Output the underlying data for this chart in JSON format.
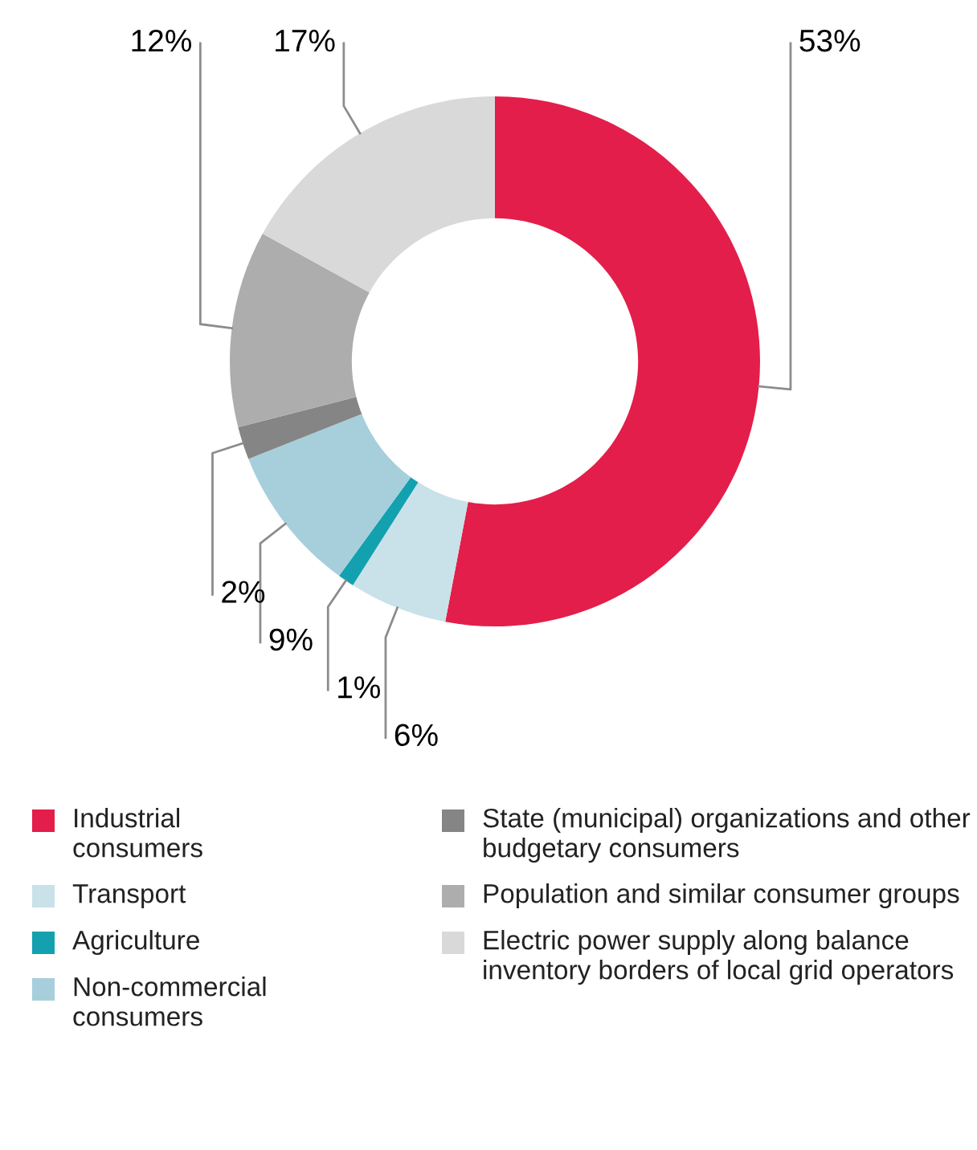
{
  "chart_data": {
    "type": "donut",
    "categories": [
      "Industrial consumers",
      "Transport",
      "Agriculture",
      "Non-commercial consumers",
      "State (municipal) organizations and other budgetary consumers",
      "Population and similar consumer groups",
      "Electric power supply along balance inventory borders of local grid operators"
    ],
    "values": [
      53,
      6,
      1,
      9,
      2,
      12,
      17
    ],
    "colors": [
      "#e31e4a",
      "#c9e1e9",
      "#13a1b0",
      "#a6cfdb",
      "#858585",
      "#adadad",
      "#d9d9d9"
    ],
    "value_labels": [
      "53%",
      "6%",
      "1%",
      "9%",
      "2%",
      "12%",
      "17%"
    ],
    "legend": "bottom"
  }
}
